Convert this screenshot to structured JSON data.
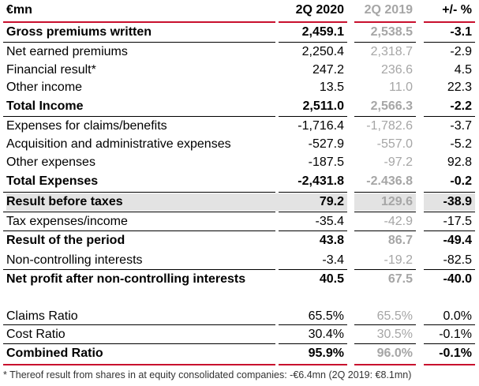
{
  "header": {
    "label": "€mn",
    "col1": "2Q 2020",
    "col2": "2Q 2019",
    "col3": "+/- %"
  },
  "rows": [
    {
      "label": "Gross premiums written",
      "v1": "2,459.1",
      "v2": "2,538.5",
      "v3": "-3.1",
      "bold": true
    },
    {
      "label": "Net earned premiums",
      "v1": "2,250.4",
      "v2": "2,318.7",
      "v3": "-2.9"
    },
    {
      "label": "Financial result*",
      "v1": "247.2",
      "v2": "236.6",
      "v3": "4.5"
    },
    {
      "label": "Other income",
      "v1": "13.5",
      "v2": "11.0",
      "v3": "22.3"
    },
    {
      "label": "Total Income",
      "v1": "2,511.0",
      "v2": "2,566.3",
      "v3": "-2.2",
      "bold": true
    },
    {
      "label": "Expenses for claims/benefits",
      "v1": "-1,716.4",
      "v2": "-1,782.6",
      "v3": "-3.7"
    },
    {
      "label": "Acquisition and administrative expenses",
      "v1": "-527.9",
      "v2": "-557.0",
      "v3": "-5.2"
    },
    {
      "label": "Other expenses",
      "v1": "-187.5",
      "v2": "-97.2",
      "v3": "92.8"
    },
    {
      "label": "Total Expenses",
      "v1": "-2,431.8",
      "v2": "-2.436.8",
      "v3": "-0.2",
      "bold": true
    },
    {
      "label": "Result before taxes",
      "v1": "79.2",
      "v2": "129.6",
      "v3": "-38.9",
      "bold": true,
      "shade": true
    },
    {
      "label": "Tax expenses/income",
      "v1": "-35.4",
      "v2": "-42.9",
      "v3": "-17.5"
    },
    {
      "label": "Result of the period",
      "v1": "43.8",
      "v2": "86.7",
      "v3": "-49.4",
      "bold": true
    },
    {
      "label": "Non-controlling interests",
      "v1": "-3.4",
      "v2": "-19.2",
      "v3": "-82.5"
    },
    {
      "label": "Net profit after non-controlling interests",
      "v1": "40.5",
      "v2": "67.5",
      "v3": "-40.0",
      "bold": true
    }
  ],
  "ratios": [
    {
      "label": "Claims Ratio",
      "v1": "65.5%",
      "v2": "65.5%",
      "v3": "0.0%"
    },
    {
      "label": "Cost Ratio",
      "v1": "30.4%",
      "v2": "30.5%",
      "v3": "-0.1%"
    },
    {
      "label": "Combined Ratio",
      "v1": "95.9%",
      "v2": "96.0%",
      "v3": "-0.1%",
      "bold": true
    }
  ],
  "footnote": "* Thereof result from shares in at equity consolidated companies: -€6.4mn (2Q 2019: €8.1mn)",
  "colors": {
    "rule": "#c8102e",
    "shade": "#e3e3e3",
    "prior_year": "#a6a6a6"
  }
}
